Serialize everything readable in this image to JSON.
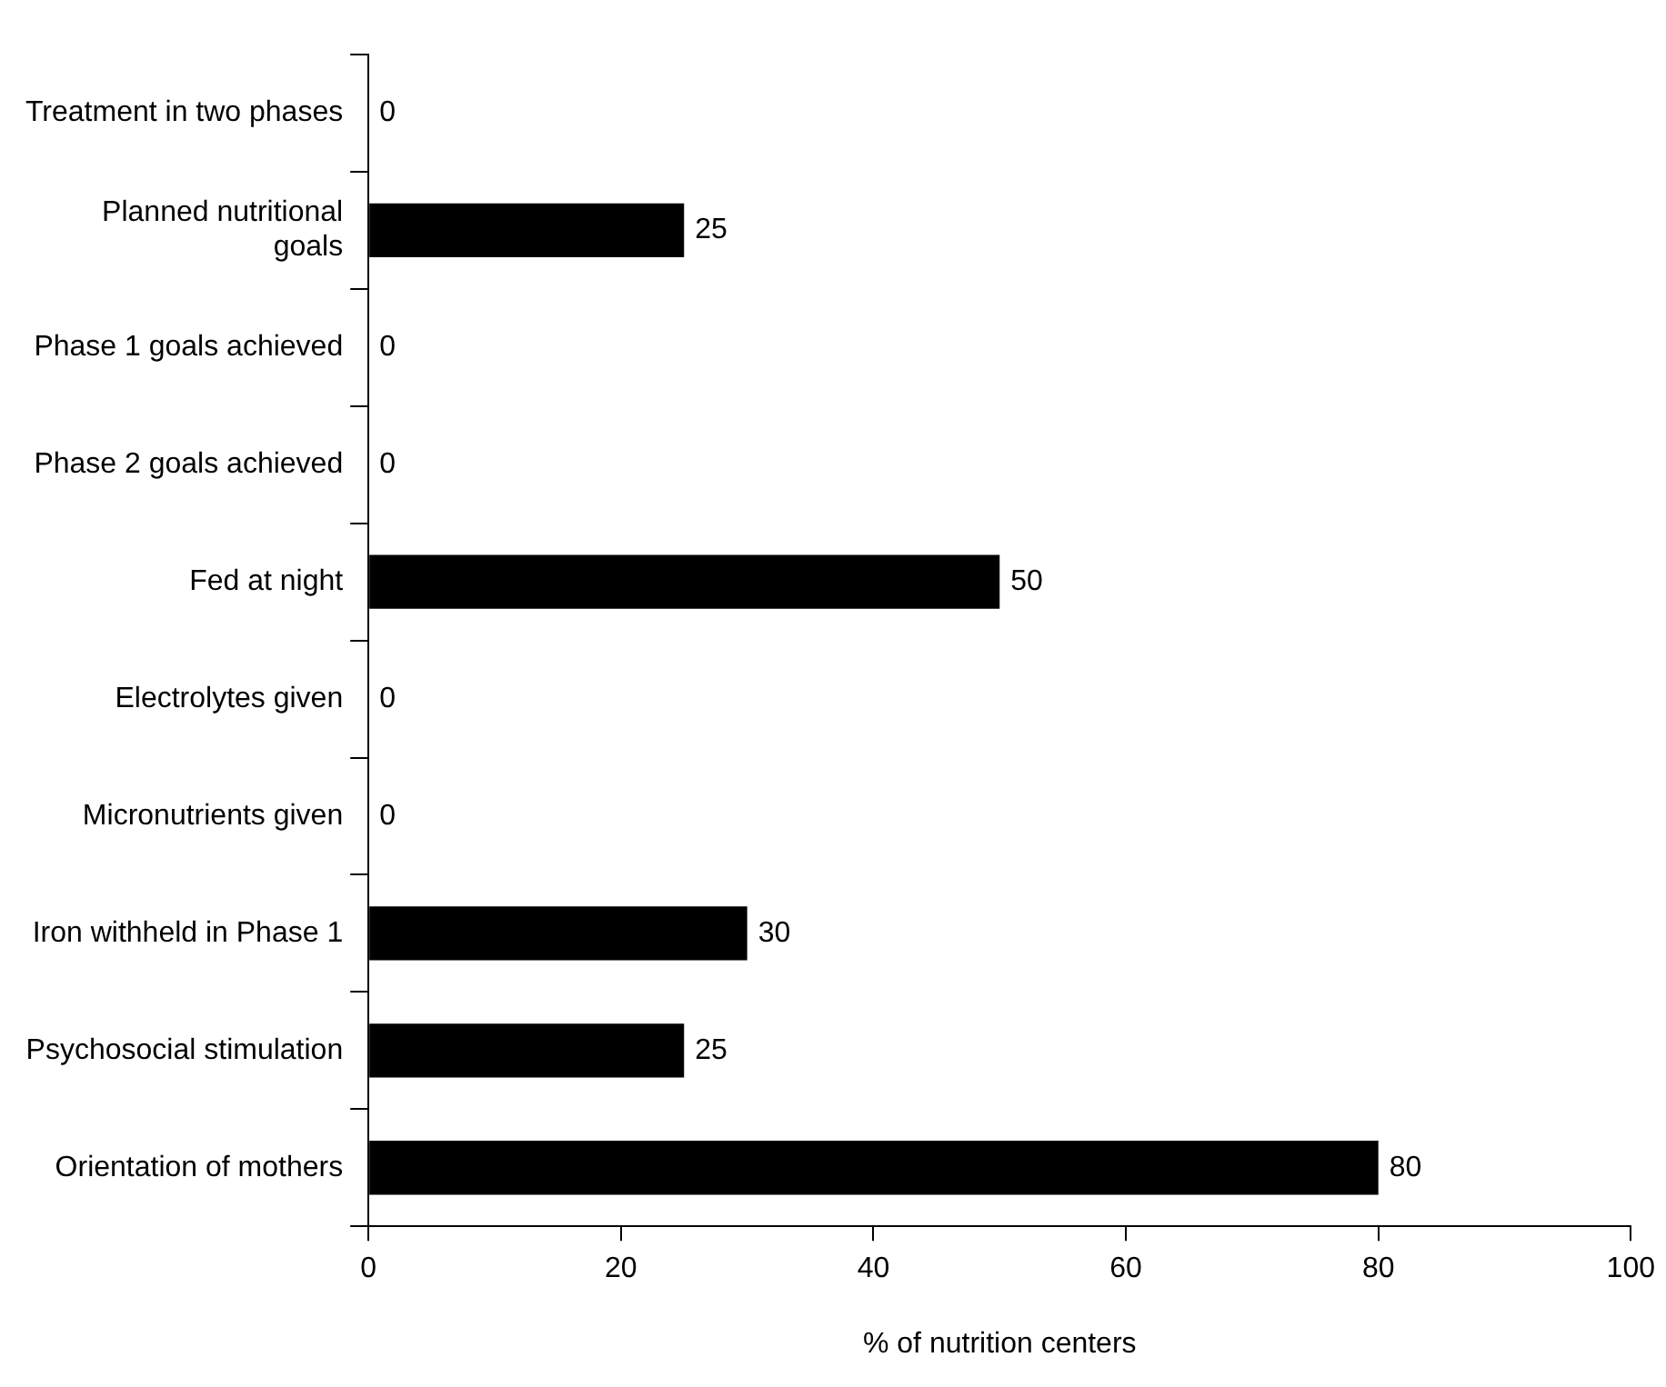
{
  "chart_data": {
    "type": "bar",
    "orientation": "horizontal",
    "xlabel": "% of nutrition centers",
    "categories": [
      "Treatment in two phases",
      "Planned nutritional goals",
      "Phase 1 goals achieved",
      "Phase 2 goals achieved",
      "Fed at night",
      "Electrolytes given",
      "Micronutrients given",
      "Iron withheld in Phase 1",
      "Psychosocial stimulation",
      "Orientation of mothers"
    ],
    "values": [
      0,
      25,
      0,
      0,
      50,
      0,
      0,
      30,
      25,
      80
    ],
    "color": "#000000",
    "xlim": [
      0,
      100
    ],
    "xticks": [
      0,
      20,
      40,
      60,
      80,
      100
    ],
    "grid": false,
    "legend": false,
    "data_labels": true
  }
}
